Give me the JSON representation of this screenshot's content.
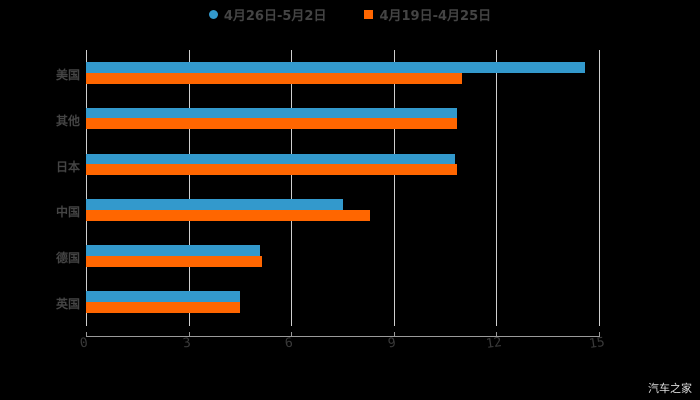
{
  "legend": [
    {
      "label": "4月26日-5月2日",
      "color": "#3399cc",
      "shape": "circle"
    },
    {
      "label": "4月19日-4月25日",
      "color": "#ff6600",
      "shape": "square"
    }
  ],
  "watermark": "汽车之家",
  "x_ticks": [
    "0",
    "3",
    "6",
    "9",
    "12",
    "15"
  ],
  "categories": [
    "美国",
    "其他",
    "日本",
    "中国",
    "德国",
    "英国"
  ],
  "chart_data": {
    "type": "bar",
    "orientation": "horizontal",
    "title": "",
    "xlabel": "",
    "ylabel": "",
    "categories": [
      "美国",
      "其他",
      "日本",
      "中国",
      "德国",
      "英国"
    ],
    "series": [
      {
        "name": "4月26日-5月2日",
        "color": "#3399cc",
        "values": [
          14.6,
          10.85,
          10.8,
          7.5,
          5.1,
          4.5
        ]
      },
      {
        "name": "4月19日-4月25日",
        "color": "#ff6600",
        "values": [
          11.0,
          10.85,
          10.85,
          8.3,
          5.15,
          4.5
        ]
      }
    ],
    "xlim": [
      0,
      15
    ],
    "x_ticks": [
      0,
      3,
      6,
      9,
      12,
      15
    ],
    "grid": "vertical",
    "legend_position": "top"
  }
}
